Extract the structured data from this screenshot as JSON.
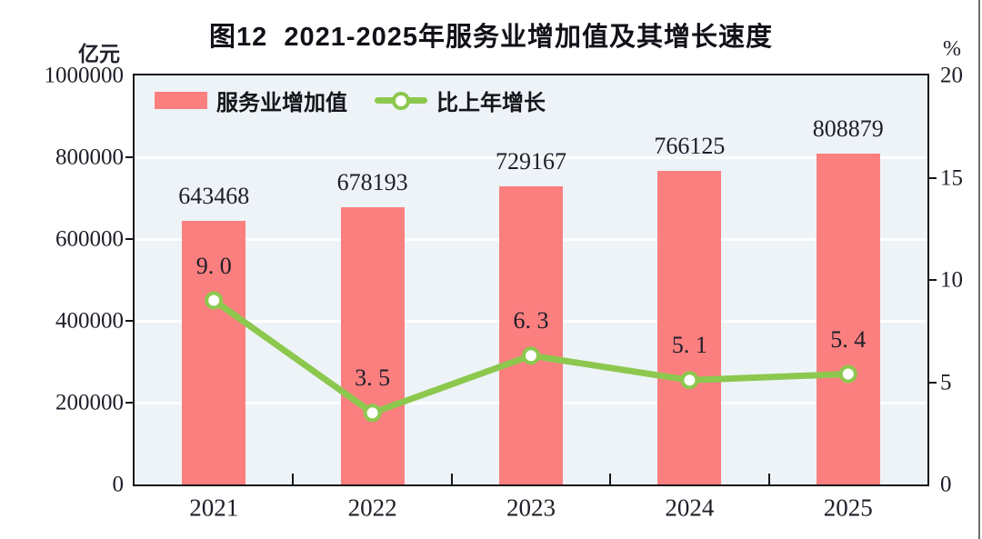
{
  "title": "图12  2021-2025年服务业增加值及其增长速度",
  "left_axis": {
    "unit": "亿元",
    "tick_labels": [
      "1000000",
      "800000",
      "600000",
      "400000",
      "200000",
      "0"
    ]
  },
  "right_axis": {
    "unit": "%",
    "tick_labels": [
      "20",
      "15",
      "10",
      "5",
      "0"
    ]
  },
  "legend": [
    {
      "label": "服务业增加值",
      "swatch": "bar"
    },
    {
      "label": "比上年增长",
      "swatch": "line-with-marker"
    }
  ],
  "colors": {
    "bar": "#FB7F7F",
    "line": "#8CC84E",
    "marker_fill": "#FFFFFF",
    "plot_background": "#EDF3F7",
    "gridline": "#FFFFFF",
    "axis_frame": "#15151B",
    "text": "#1E1E28",
    "screen_edge": "#6E6E6E"
  },
  "chart_data": {
    "type": "bar+line",
    "title": "图12  2021-2025年服务业增加值及其增长速度",
    "categories": [
      "2021",
      "2022",
      "2023",
      "2024",
      "2025"
    ],
    "series": [
      {
        "name": "服务业增加值",
        "type": "bar",
        "axis": "left",
        "unit": "亿元",
        "color": "#FB7F7F",
        "values": [
          643468,
          678193,
          729167,
          766125,
          808879
        ],
        "labels": [
          "643468",
          "678193",
          "729167",
          "766125",
          "808879"
        ]
      },
      {
        "name": "比上年增长",
        "type": "line",
        "axis": "right",
        "unit": "%",
        "color": "#8CC84E",
        "marker": "circle-white-fill",
        "values": [
          9.0,
          3.5,
          6.3,
          5.1,
          5.4
        ],
        "labels": [
          "9. 0",
          "3. 5",
          "6. 3",
          "5. 1",
          "5. 4"
        ]
      }
    ],
    "left_ylim": [
      0,
      1000000
    ],
    "left_tick_step": 200000,
    "right_ylim": [
      0,
      20
    ],
    "right_tick_step": 5,
    "grid": "horizontal white lines at left-axis 200000 steps",
    "legend_position": "top-left inside plot area"
  }
}
